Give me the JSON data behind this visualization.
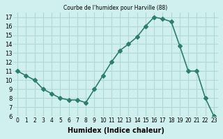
{
  "x": [
    0,
    1,
    2,
    3,
    4,
    5,
    6,
    7,
    8,
    9,
    10,
    11,
    12,
    13,
    14,
    15,
    16,
    17,
    18,
    19,
    20,
    21,
    22,
    23
  ],
  "y": [
    11,
    10.5,
    10,
    9,
    8.5,
    8,
    7.8,
    7.8,
    7.5,
    9,
    10.5,
    12,
    13.3,
    14,
    14.8,
    16,
    17,
    16.8,
    16.5,
    13.8,
    11,
    11,
    8,
    6
  ],
  "title": "Courbe de l'humidex pour Harville (88)",
  "xlabel": "Humidex (Indice chaleur)",
  "ylabel": "",
  "line_color": "#2e7d6e",
  "marker": "D",
  "marker_size": 3,
  "bg_color": "#cff0ee",
  "grid_color": "#b0d8d4",
  "xlim": [
    -0.5,
    23.5
  ],
  "ylim": [
    6,
    17.5
  ],
  "yticks": [
    6,
    7,
    8,
    9,
    10,
    11,
    12,
    13,
    14,
    15,
    16,
    17
  ],
  "xticks": [
    0,
    1,
    2,
    3,
    4,
    5,
    6,
    7,
    8,
    9,
    10,
    11,
    12,
    13,
    14,
    15,
    16,
    17,
    18,
    19,
    20,
    21,
    22,
    23
  ]
}
